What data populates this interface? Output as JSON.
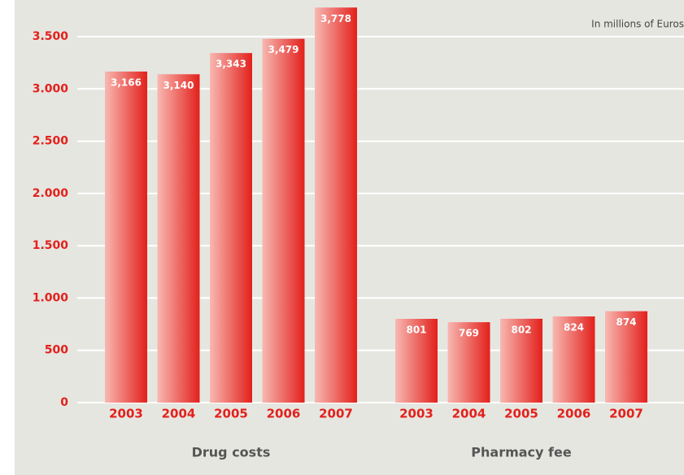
{
  "chart_data": {
    "type": "bar",
    "annotation": "In millions of Euros",
    "categories": [
      "Drug costs",
      "Pharmacy fee"
    ],
    "series": [
      {
        "name": "2003",
        "color": "#e3201b",
        "values": [
          3166,
          801
        ],
        "value_labels": [
          "3,166",
          "801"
        ]
      },
      {
        "name": "2004",
        "color": "#e3201b",
        "values": [
          3140,
          769
        ],
        "value_labels": [
          "3,140",
          "769"
        ]
      },
      {
        "name": "2005",
        "color": "#e3201b",
        "values": [
          3343,
          802
        ],
        "value_labels": [
          "3,343",
          "802"
        ]
      },
      {
        "name": "2006",
        "color": "#e3201b",
        "values": [
          3479,
          824
        ],
        "value_labels": [
          "3,479",
          "824"
        ]
      },
      {
        "name": "2007",
        "color": "#e3201b",
        "values": [
          3778,
          874
        ],
        "value_labels": [
          "3,778",
          "874"
        ]
      }
    ],
    "ylim": [
      0,
      3500
    ],
    "yticks": [
      0,
      500,
      {
        "value": 1000,
        "label": "1.000"
      },
      {
        "value": 1500,
        "label": "1.500"
      },
      {
        "value": 2000,
        "label": "2.000"
      },
      {
        "value": 2500,
        "label": "2.500"
      },
      {
        "value": 3000,
        "label": "3.000"
      },
      {
        "value": 3500,
        "label": "3.500"
      }
    ],
    "grid": true
  }
}
